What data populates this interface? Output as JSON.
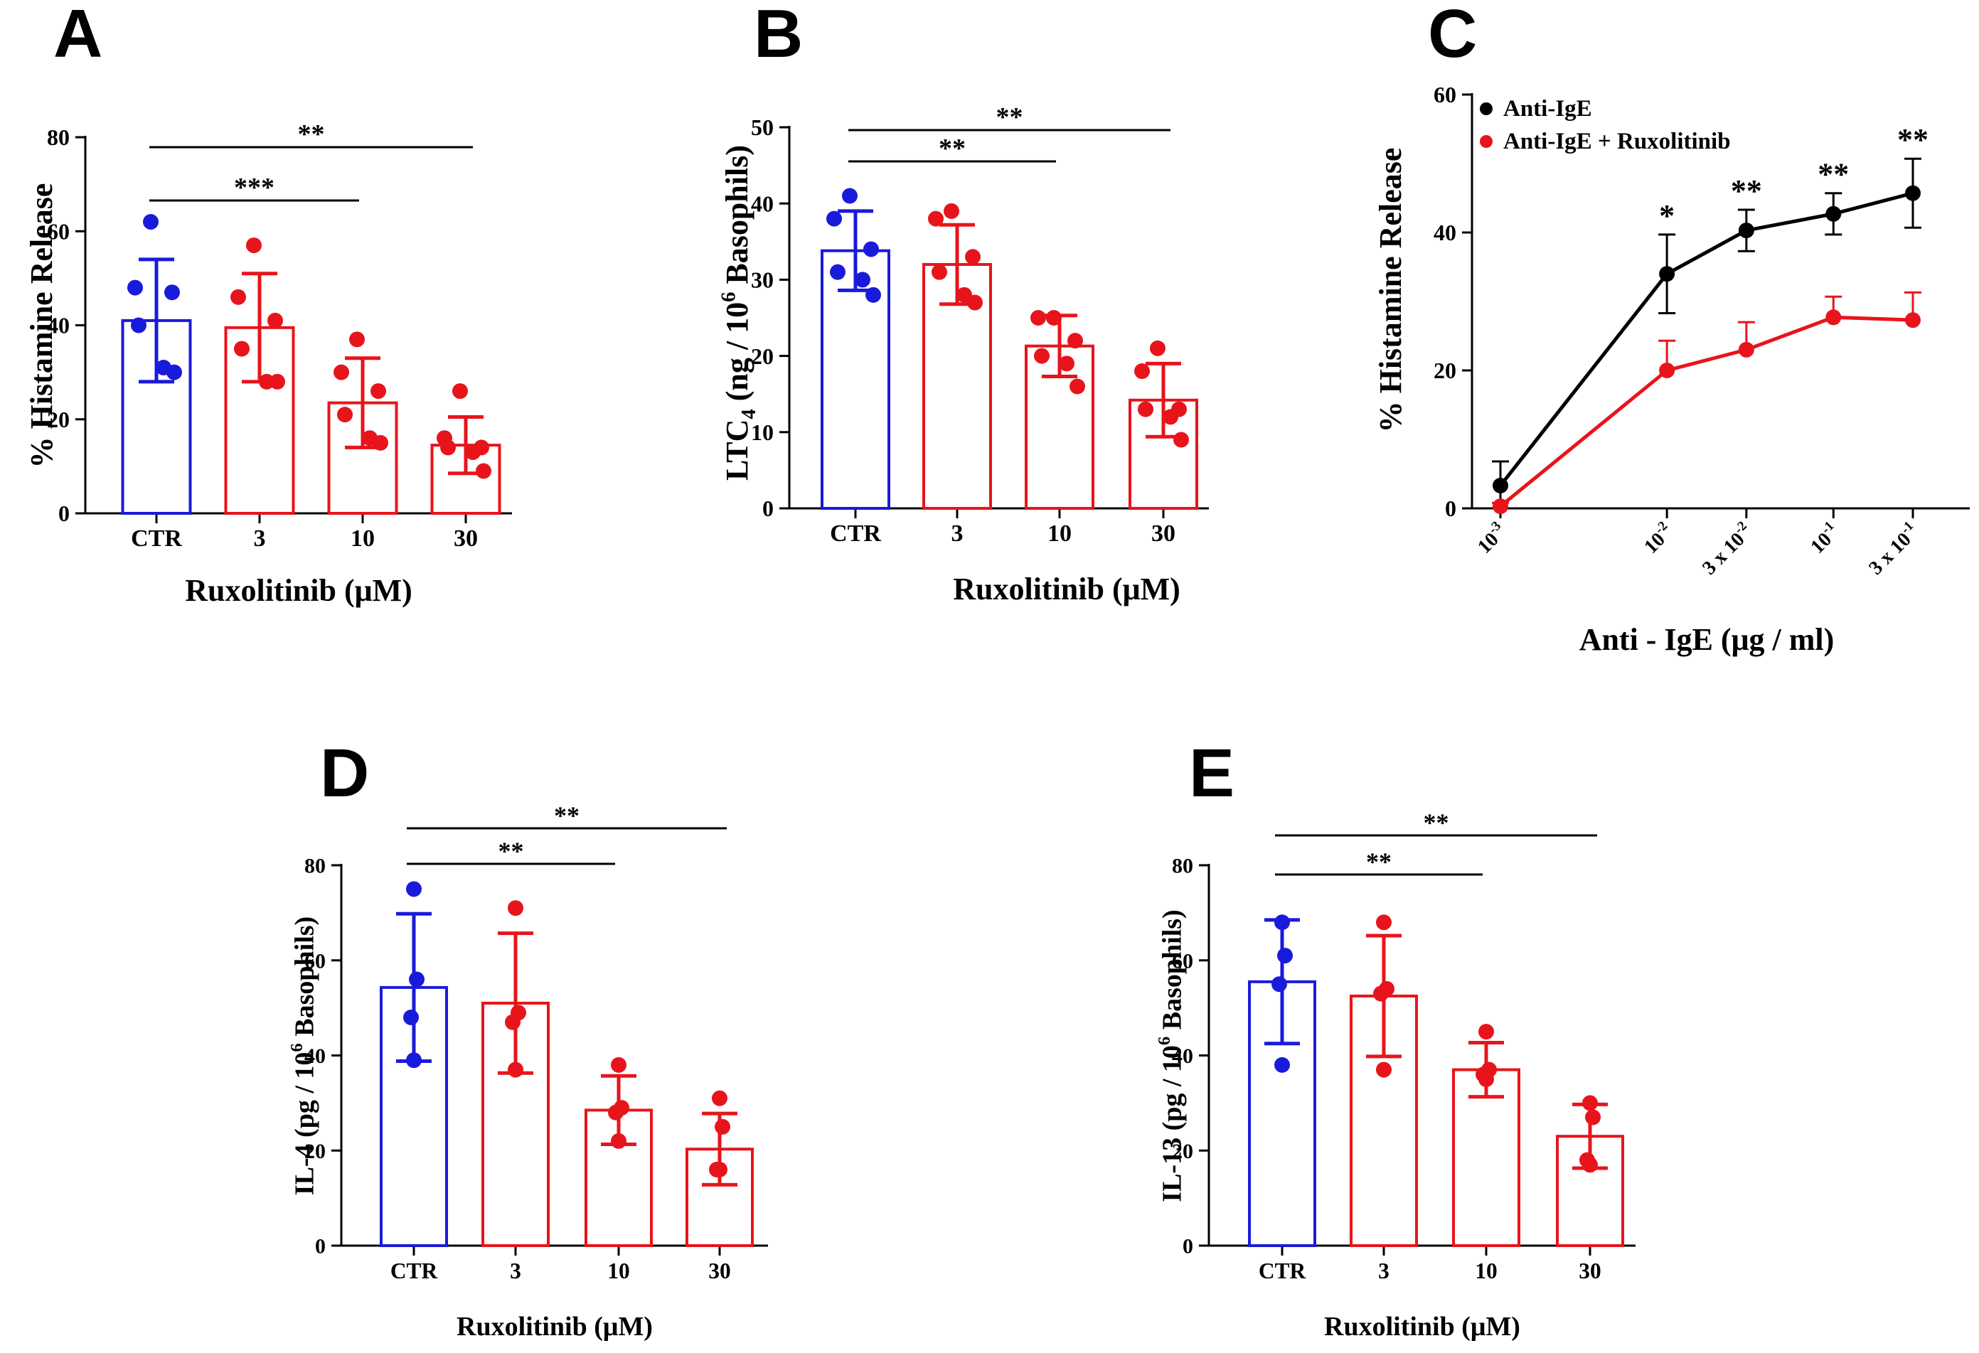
{
  "figure": {
    "colors": {
      "control": "#1a1adb",
      "treated": "#e8141b",
      "axis": "#000000",
      "anti_ige": "#000000",
      "anti_ige_rux": "#e8141b"
    }
  },
  "chart_data": [
    {
      "panel": "A",
      "type": "bar",
      "ylabel": "% Histamine Release",
      "xlabel": "Ruxolitinib (μM)",
      "categories": [
        "CTR",
        "3",
        "10",
        "30"
      ],
      "yticks": [
        "0",
        "20",
        "40",
        "60",
        "80"
      ],
      "ylim": [
        0,
        80
      ],
      "means": [
        41,
        39.5,
        23.5,
        14.5
      ],
      "sd": [
        13,
        11.5,
        9.5,
        6
      ],
      "points": [
        [
          62,
          48,
          47,
          40,
          31,
          30
        ],
        [
          57,
          46,
          41,
          35,
          28,
          28
        ],
        [
          37,
          30,
          26,
          21,
          16,
          15
        ],
        [
          26,
          16,
          14,
          14,
          13,
          9
        ]
      ],
      "bar_colors": [
        "control",
        "treated",
        "treated",
        "treated"
      ],
      "significance": [
        {
          "from": 0,
          "to": 3,
          "label": "**"
        },
        {
          "from": 0,
          "to": 2,
          "label": "***"
        }
      ]
    },
    {
      "panel": "B",
      "type": "bar",
      "ylabel": "LTC4 (ng / 10^6 Basophils)",
      "ylabel_parts": [
        "LTC",
        "4",
        " (ng / 10",
        "6",
        " Basophils)"
      ],
      "xlabel": "Ruxolitinib (μM)",
      "categories": [
        "CTR",
        "3",
        "10",
        "30"
      ],
      "yticks": [
        "0",
        "10",
        "20",
        "30",
        "40",
        "50"
      ],
      "ylim": [
        0,
        50
      ],
      "means": [
        33.8,
        32,
        21.3,
        14.2
      ],
      "sd": [
        5.2,
        5.2,
        4,
        4.8
      ],
      "points": [
        [
          41,
          38,
          34,
          31,
          30,
          28
        ],
        [
          39,
          38,
          33,
          31,
          28,
          27
        ],
        [
          25,
          25,
          22,
          20,
          19,
          16
        ],
        [
          21,
          18,
          13,
          13,
          12,
          9
        ]
      ],
      "bar_colors": [
        "control",
        "treated",
        "treated",
        "treated"
      ],
      "significance": [
        {
          "from": 0,
          "to": 3,
          "label": "**"
        },
        {
          "from": 0,
          "to": 2,
          "label": "**"
        }
      ]
    },
    {
      "panel": "C",
      "type": "line",
      "ylabel": "% Histamine Release",
      "xlabel": "Anti - IgE (μg / ml)",
      "x_labels": [
        {
          "base": "10",
          "exp": "-3"
        },
        {
          "base": "10",
          "exp": "-2"
        },
        {
          "base": "3 x 10",
          "exp": "-2"
        },
        {
          "base": "10",
          "exp": "-1"
        },
        {
          "base": "3 x 10",
          "exp": "-1"
        }
      ],
      "x": [
        0.001,
        0.01,
        0.03,
        0.1,
        0.3
      ],
      "yticks": [
        "0",
        "20",
        "40",
        "60"
      ],
      "ylim": [
        0,
        60
      ],
      "legend_position": "top-left",
      "series": [
        {
          "name": "Anti-IgE",
          "color": "anti_ige",
          "values": [
            3.3,
            34,
            40.3,
            42.7,
            45.7
          ],
          "err": [
            3.5,
            5.7,
            3,
            3,
            5
          ]
        },
        {
          "name": "Anti-IgE + Ruxolitinib",
          "color": "anti_ige_rux",
          "values": [
            0.3,
            20,
            23,
            27.7,
            27.3
          ],
          "err": [
            0.5,
            4.3,
            4,
            3,
            4
          ]
        }
      ],
      "significance": [
        "",
        "*",
        "**",
        "**",
        "**"
      ]
    },
    {
      "panel": "D",
      "type": "bar",
      "ylabel": "IL-4 (pg / 10^6 Basophils)",
      "ylabel_parts": [
        "IL-4 (pg / 10",
        "6",
        " Basophils)"
      ],
      "xlabel": "Ruxolitinib (μM)",
      "categories": [
        "CTR",
        "3",
        "10",
        "30"
      ],
      "yticks": [
        "0",
        "20",
        "40",
        "60",
        "80"
      ],
      "ylim": [
        0,
        80
      ],
      "means": [
        54.3,
        51,
        28.5,
        20.3
      ],
      "sd": [
        15.5,
        14.7,
        7.2,
        7.5
      ],
      "points": [
        [
          75,
          56,
          48,
          39
        ],
        [
          71,
          49,
          47,
          37
        ],
        [
          38,
          29,
          28,
          22
        ],
        [
          31,
          25,
          16,
          16
        ]
      ],
      "bar_colors": [
        "control",
        "treated",
        "treated",
        "treated"
      ],
      "significance": [
        {
          "from": 0,
          "to": 3,
          "label": "**"
        },
        {
          "from": 0,
          "to": 2,
          "label": "**"
        }
      ]
    },
    {
      "panel": "E",
      "type": "bar",
      "ylabel": "IL-13 (pg / 10^6 Basophils)",
      "ylabel_parts": [
        "IL-13 (pg / 10",
        "6",
        " Basophils)"
      ],
      "xlabel": "Ruxolitinib (μM)",
      "categories": [
        "CTR",
        "3",
        "10",
        "30"
      ],
      "yticks": [
        "0",
        "20",
        "40",
        "60",
        "80"
      ],
      "ylim": [
        0,
        80
      ],
      "means": [
        55.5,
        52.5,
        37,
        23
      ],
      "sd": [
        13,
        12.7,
        5.7,
        6.7
      ],
      "points": [
        [
          68,
          61,
          55,
          38
        ],
        [
          68,
          54,
          53,
          37
        ],
        [
          45,
          37,
          36,
          35
        ],
        [
          30,
          27,
          18,
          17
        ]
      ],
      "bar_colors": [
        "control",
        "treated",
        "treated",
        "treated"
      ],
      "significance": [
        {
          "from": 0,
          "to": 3,
          "label": "**"
        },
        {
          "from": 0,
          "to": 2,
          "label": "**"
        }
      ]
    }
  ]
}
